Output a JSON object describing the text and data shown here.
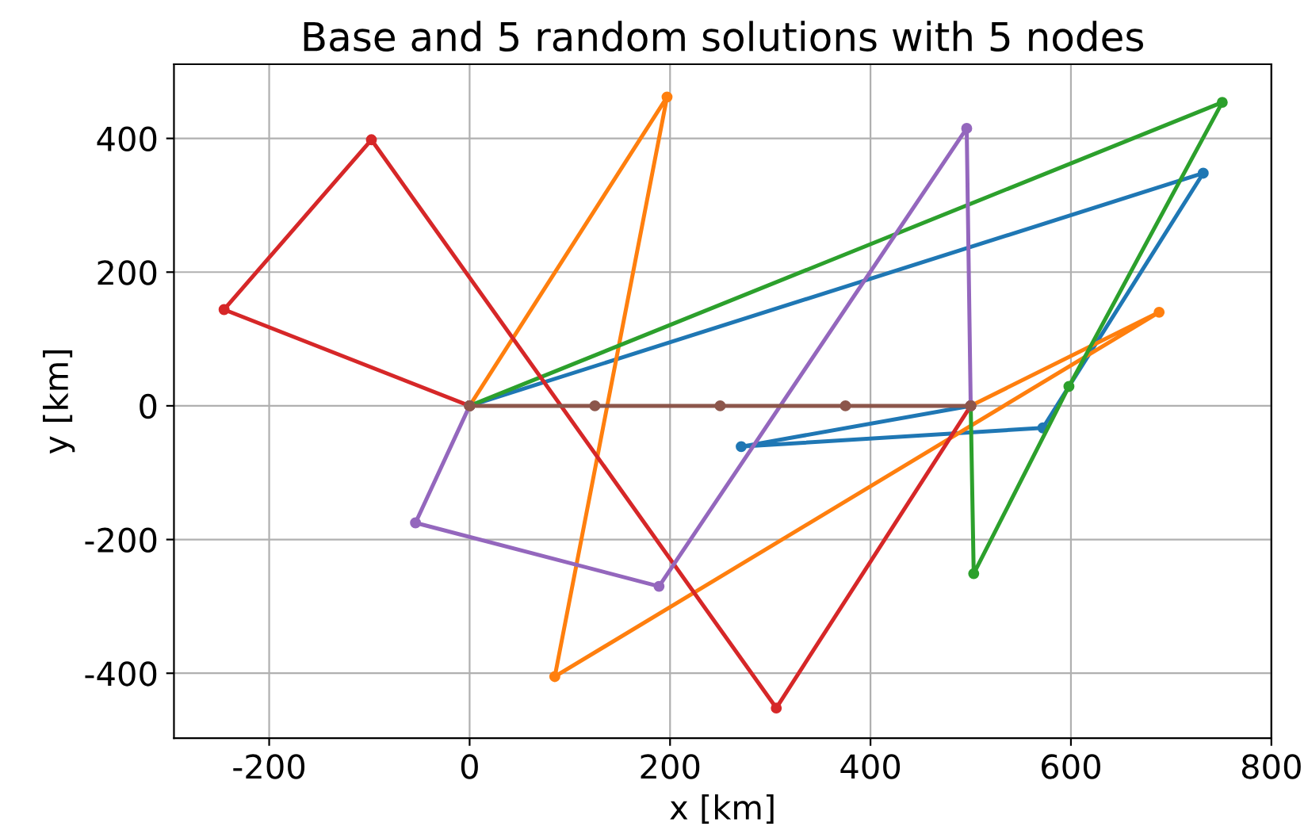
{
  "chart_data": {
    "type": "line",
    "title": "Base and 5 random solutions with 5 nodes",
    "xlabel": "x [km]",
    "ylabel": "y [km]",
    "xlim": [
      -295,
      800
    ],
    "ylim": [
      -497,
      511
    ],
    "xticks": [
      -200,
      0,
      200,
      400,
      600,
      800
    ],
    "yticks": [
      -400,
      -200,
      0,
      200,
      400
    ],
    "grid": true,
    "marker": "circle",
    "line_style": "solid",
    "series": [
      {
        "color": "#1f77b4",
        "x": [
          0,
          732,
          572,
          271,
          500
        ],
        "values": [
          0,
          348,
          -33,
          -61,
          0
        ]
      },
      {
        "color": "#ff7f0e",
        "x": [
          0,
          197,
          85,
          688,
          500
        ],
        "values": [
          0,
          462,
          -405,
          140,
          0
        ]
      },
      {
        "color": "#2ca02c",
        "x": [
          0,
          751,
          598,
          503,
          500
        ],
        "values": [
          0,
          454,
          29,
          -251,
          0
        ]
      },
      {
        "color": "#d62728",
        "x": [
          0,
          -245,
          -98,
          306,
          500
        ],
        "values": [
          0,
          144,
          398,
          -452,
          0
        ]
      },
      {
        "color": "#9467bd",
        "x": [
          0,
          -54,
          189,
          496,
          500
        ],
        "values": [
          0,
          -175,
          -270,
          415,
          0
        ]
      },
      {
        "color": "#8c564b",
        "x": [
          0,
          125,
          250,
          375,
          500
        ],
        "values": [
          0,
          0,
          0,
          0,
          0
        ]
      }
    ]
  }
}
